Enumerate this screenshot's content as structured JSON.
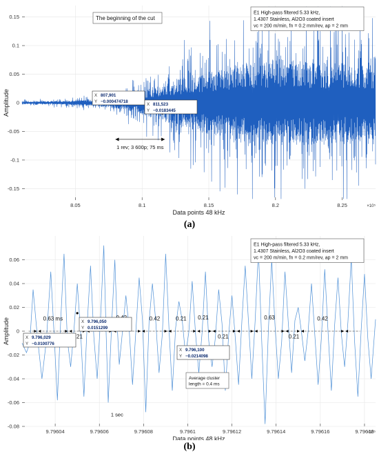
{
  "panel_labels": [
    "(a)",
    "(b)"
  ],
  "chart_data": [
    {
      "type": "line",
      "panel": "(a)",
      "xlabel": "Data points 48 kHz",
      "ylabel": "Amplitude",
      "x_exponent": "×10⁵",
      "xlim": [
        8.01,
        8.275
      ],
      "ylim": [
        -0.17,
        0.17
      ],
      "xticks": [
        8.05,
        8.1,
        8.15,
        8.2,
        8.25
      ],
      "xtick_labels": [
        "8.05",
        "8.1",
        "8.15",
        "8.2",
        "8.25"
      ],
      "yticks": [
        -0.15,
        -0.1,
        -0.05,
        0,
        0.05,
        0.1,
        0.15
      ],
      "ytick_labels": [
        "-0.15",
        "-0.1",
        "-0.05",
        "0",
        "0.05",
        "0.1",
        "0.15"
      ],
      "grid": true,
      "line_color": "#1f5fbf",
      "envelope": {
        "x": [
          8.01,
          8.04,
          8.06,
          8.08,
          8.095,
          8.105,
          8.115,
          8.125,
          8.14,
          8.16,
          8.18,
          8.2,
          8.22,
          8.24,
          8.26,
          8.275
        ],
        "amp": [
          0.004,
          0.006,
          0.01,
          0.018,
          0.03,
          0.045,
          0.055,
          0.075,
          0.09,
          0.11,
          0.13,
          0.14,
          0.135,
          0.13,
          0.125,
          0.12
        ]
      },
      "text_boxes": [
        {
          "id": "title-box",
          "lines": [
            "The beginning of the cut"
          ]
        },
        {
          "id": "legend-box",
          "lines": [
            "E1 High-pass filtered 5.33 kHz,",
            "1.4307 Stainless, Al2O3 coated insert",
            "vc = 200 m/min, fn = 0.2 mm/rev, ap = 2 mm"
          ]
        }
      ],
      "datatips": [
        {
          "id": "tip-1",
          "x_label": "X",
          "x_value": "807,901",
          "y_label": "Y",
          "y_value": "−0.000474718",
          "x": 8.07901,
          "y": -0.000474718
        },
        {
          "id": "tip-2",
          "x_label": "X",
          "x_value": "811,523",
          "y_label": "Y",
          "y_value": "−0.0183445",
          "x": 8.11523,
          "y": -0.0183445
        }
      ],
      "annotations": [
        {
          "id": "rev-annotation",
          "text": "1 rev; 3 600p; 75 ms",
          "x_start": 8.08,
          "x_end": 8.117,
          "y": -0.1
        }
      ]
    },
    {
      "type": "line",
      "panel": "(b)",
      "xlabel": "Data points 48 kHz",
      "ylabel": "Amplitude",
      "x_exponent": "×10⁵",
      "xlim": [
        9.796025,
        9.796185
      ],
      "ylim": [
        -0.08,
        0.08
      ],
      "xticks": [
        9.79604,
        9.79606,
        9.79608,
        9.7961,
        9.79612,
        9.79614,
        9.79616,
        9.79618
      ],
      "xtick_labels": [
        "9.79604",
        "9.79606",
        "9.79608",
        "9.7961",
        "9.79612",
        "9.79614",
        "9.79616",
        "9.79618"
      ],
      "yticks": [
        -0.08,
        -0.06,
        -0.04,
        -0.02,
        0,
        0.02,
        0.04,
        0.06
      ],
      "ytick_labels": [
        "-0.08",
        "-0.06",
        "-0.04",
        "-0.02",
        "0",
        "0.02",
        "0.04",
        "0.06"
      ],
      "grid": true,
      "line_color": "#4d8fd6",
      "text_boxes": [
        {
          "id": "legend-box",
          "lines": [
            "E1 High-pass filtered 5.33 kHz,",
            "1.4307 Stainless, Al2O3 coated insert",
            "vc = 200 m/min, fn = 0.2 mm/rev, ap = 2 mm"
          ]
        },
        {
          "id": "cluster-box",
          "lines": [
            "Average cluster",
            "length = 0.4 ms"
          ]
        }
      ],
      "datatips": [
        {
          "id": "tip-1",
          "x_label": "X",
          "x_value": "9.796,029",
          "y_label": "Y",
          "y_value": "−0.0100776",
          "x": 9.796029,
          "y": -0.0100776
        },
        {
          "id": "tip-2",
          "x_label": "X",
          "x_value": "9.796,050",
          "y_label": "Y",
          "y_value": "0.0151299",
          "x": 9.79605,
          "y": 0.0151299
        },
        {
          "id": "tip-3",
          "x_label": "X",
          "x_value": "9.796,100",
          "y_label": "Y",
          "y_value": "−0.0214098",
          "x": 9.7961,
          "y": -0.0214098
        }
      ],
      "cluster_markers": [
        9.796032,
        9.796046,
        9.796054,
        9.796066,
        9.796079,
        9.796091,
        9.796104,
        9.796111,
        9.796122,
        9.79613,
        9.796144,
        9.796151,
        9.796171
      ],
      "cluster_labels": [
        {
          "text": "0.63 ms",
          "x": 9.796039,
          "y": 0.009
        },
        {
          "text": "0.21",
          "x": 9.79605,
          "y": -0.006
        },
        {
          "text": "0.42",
          "x": 9.79607,
          "y": 0.01
        },
        {
          "text": "0.42",
          "x": 9.796085,
          "y": 0.009
        },
        {
          "text": "0.21",
          "x": 9.796097,
          "y": 0.009
        },
        {
          "text": "0.21",
          "x": 9.796107,
          "y": 0.01
        },
        {
          "text": "0.21",
          "x": 9.796116,
          "y": -0.006
        },
        {
          "text": "0.63",
          "x": 9.796137,
          "y": 0.01
        },
        {
          "text": "0.21",
          "x": 9.796148,
          "y": -0.006
        },
        {
          "text": "0.42",
          "x": 9.796161,
          "y": 0.009
        }
      ],
      "annotations": [
        {
          "id": "sec-label",
          "text": "1 sec",
          "x": 9.796068,
          "y": -0.0715
        }
      ]
    }
  ]
}
